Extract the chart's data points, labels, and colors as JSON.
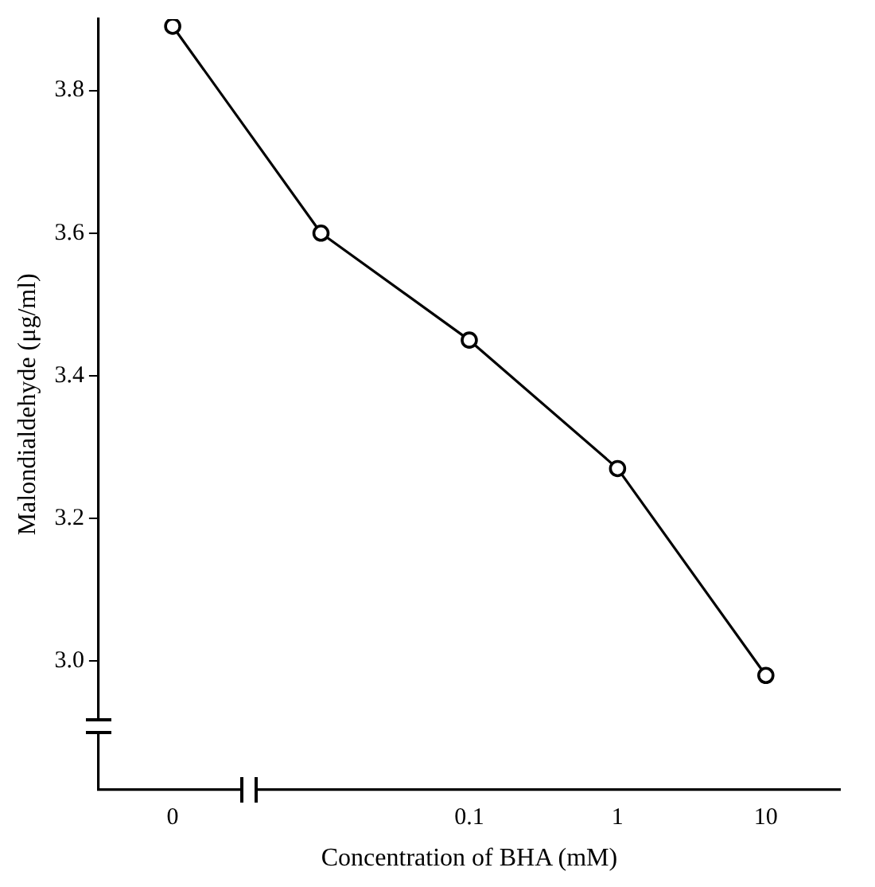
{
  "chart_data": {
    "type": "line",
    "xlabel": "Concentration of BHA (mM)",
    "ylabel": "Malondialdehyde (μg/ml)",
    "categories": [
      "0",
      null,
      "0.1",
      "1",
      "10"
    ],
    "series": [
      {
        "color": "#000000",
        "values": [
          3.89,
          3.6,
          3.45,
          3.27,
          2.98
        ]
      }
    ],
    "ylim": [
      2.82,
      3.9
    ],
    "yticks": [
      {
        "value": 3.0,
        "label": "3.0"
      },
      {
        "value": 3.2,
        "label": "3.2"
      },
      {
        "value": 3.4,
        "label": "3.4"
      },
      {
        "value": 3.6,
        "label": "3.6"
      },
      {
        "value": 3.8,
        "label": "3.8"
      }
    ],
    "grid": false,
    "legend": false,
    "marker": "circle",
    "line_style": "solid"
  }
}
